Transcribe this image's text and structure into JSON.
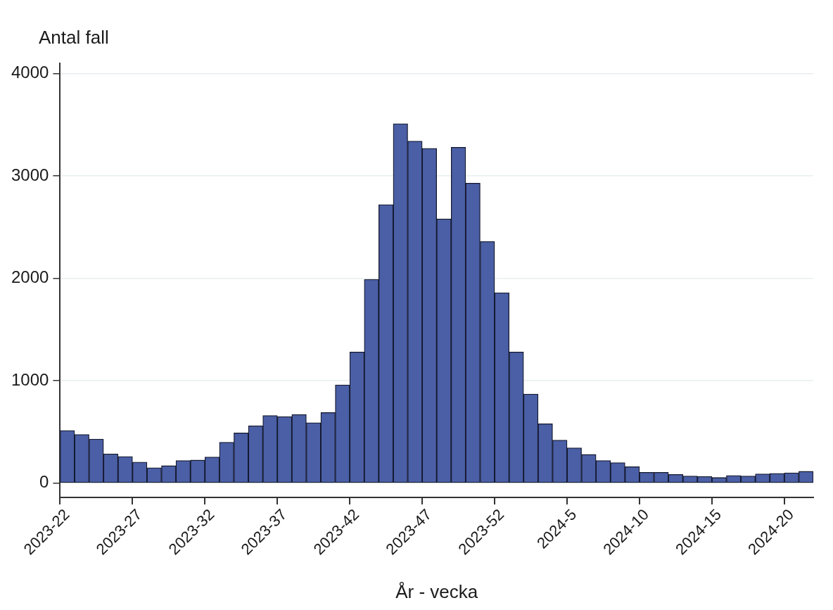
{
  "chart_data": {
    "type": "bar",
    "xlabel": "År - vecka",
    "ylabel": "Antal fall",
    "categories": [
      "2023-22",
      null,
      null,
      null,
      null,
      "2023-27",
      null,
      null,
      null,
      null,
      "2023-32",
      null,
      null,
      null,
      null,
      "2023-37",
      null,
      null,
      null,
      null,
      "2023-42",
      null,
      null,
      null,
      null,
      "2023-47",
      null,
      null,
      null,
      null,
      "2023-52",
      null,
      null,
      null,
      null,
      "2024-5",
      null,
      null,
      null,
      null,
      "2024-10",
      null,
      null,
      null,
      null,
      "2024-15",
      null,
      null,
      null,
      null,
      "2024-20",
      null
    ],
    "values": [
      515,
      475,
      430,
      285,
      260,
      205,
      150,
      170,
      220,
      225,
      255,
      400,
      490,
      560,
      660,
      650,
      670,
      590,
      690,
      960,
      1280,
      1990,
      2720,
      3510,
      3340,
      3270,
      2580,
      3280,
      2930,
      2360,
      1860,
      1280,
      870,
      580,
      420,
      345,
      280,
      220,
      200,
      160,
      105,
      105,
      85,
      70,
      65,
      55,
      75,
      70,
      90,
      95,
      100,
      115
    ],
    "color": "#4a5fa5",
    "ylim": [
      -140,
      4100
    ],
    "yticks": [
      0,
      1000,
      2000,
      3000,
      4000
    ],
    "grid": "y"
  }
}
